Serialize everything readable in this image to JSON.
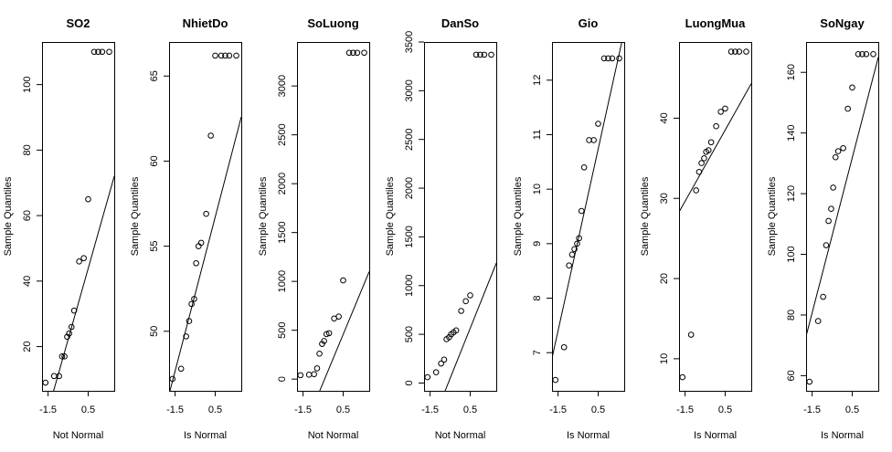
{
  "chart_data": [
    {
      "type": "scatter",
      "title": "SO2",
      "xlabel": "Not Normal",
      "ylabel": "Sample Quantiles",
      "x_ticks": [
        -1.5,
        0.5
      ],
      "x_tick_labels": [
        "-1.5",
        "0.5"
      ],
      "y_ticks": [
        20,
        40,
        60,
        80,
        100
      ],
      "xlim": [
        -1.8,
        1.8
      ],
      "ylim": [
        6.5,
        113
      ],
      "x": [
        -1.63,
        -1.2,
        -0.95,
        -0.8,
        -0.68,
        -0.55,
        -0.45,
        -0.33,
        -0.2,
        0.05,
        0.28,
        0.5,
        0.8,
        1.0,
        1.2,
        1.55
      ],
      "y": [
        9,
        11,
        11,
        17,
        17,
        23,
        24,
        26,
        31,
        46,
        47,
        65,
        110,
        110,
        110,
        110
      ],
      "reference_line": [
        [
          -1.8,
          -6
        ],
        [
          1.8,
          72
        ]
      ],
      "grid": false
    },
    {
      "type": "scatter",
      "title": "NhietDo",
      "xlabel": "Is Normal",
      "ylabel": "Sample Quantiles",
      "x_ticks": [
        -1.5,
        0.5
      ],
      "x_tick_labels": [
        "-1.5",
        "0.5"
      ],
      "y_ticks": [
        50,
        55,
        60,
        65
      ],
      "xlim": [
        -1.8,
        1.8
      ],
      "ylim": [
        46.5,
        67
      ],
      "x": [
        -1.63,
        -1.2,
        -0.95,
        -0.8,
        -0.68,
        -0.55,
        -0.45,
        -0.33,
        -0.2,
        0.05,
        0.28,
        0.5,
        0.8,
        1.0,
        1.2,
        1.55
      ],
      "y": [
        47.2,
        47.8,
        49.7,
        50.6,
        51.6,
        51.9,
        54.0,
        55.0,
        55.2,
        56.9,
        61.5,
        66.2,
        66.2,
        66.2,
        66.2,
        66.2
      ],
      "reference_line": [
        [
          -1.8,
          46.3
        ],
        [
          1.8,
          62.6
        ]
      ],
      "grid": false
    },
    {
      "type": "scatter",
      "title": "SoLuong",
      "xlabel": "Not Normal",
      "ylabel": "Sample Quantiles",
      "x_ticks": [
        -1.5,
        0.5
      ],
      "x_tick_labels": [
        "-1.5",
        "0.5"
      ],
      "y_ticks": [
        0,
        500,
        1000,
        1500,
        2000,
        2500,
        3000
      ],
      "xlim": [
        -1.8,
        1.8
      ],
      "ylim": [
        -120,
        3450
      ],
      "x": [
        -1.63,
        -1.2,
        -0.95,
        -0.8,
        -0.68,
        -0.55,
        -0.45,
        -0.33,
        -0.2,
        0.05,
        0.28,
        0.5,
        0.8,
        1.0,
        1.2,
        1.55
      ],
      "y": [
        40,
        45,
        50,
        110,
        260,
        360,
        390,
        460,
        470,
        620,
        640,
        1010,
        3340,
        3340,
        3340,
        3340
      ],
      "reference_line": [
        [
          -1.8,
          -680
        ],
        [
          1.8,
          1100
        ]
      ],
      "grid": false
    },
    {
      "type": "scatter",
      "title": "DanSo",
      "xlabel": "Not Normal",
      "ylabel": "Sample Quantiles",
      "x_ticks": [
        -1.5,
        0.5
      ],
      "x_tick_labels": [
        "-1.5",
        "0.5"
      ],
      "y_ticks": [
        0,
        500,
        1000,
        1500,
        2000,
        2500,
        3000,
        3500
      ],
      "xlim": [
        -1.8,
        1.8
      ],
      "ylim": [
        -80,
        3500
      ],
      "x": [
        -1.63,
        -1.2,
        -0.95,
        -0.8,
        -0.68,
        -0.55,
        -0.45,
        -0.33,
        -0.2,
        0.05,
        0.28,
        0.5,
        0.8,
        1.0,
        1.2,
        1.55
      ],
      "y": [
        60,
        110,
        200,
        240,
        450,
        470,
        500,
        520,
        540,
        740,
        840,
        900,
        3370,
        3370,
        3370,
        3370
      ],
      "reference_line": [
        [
          -1.8,
          -620
        ],
        [
          1.8,
          1230
        ]
      ],
      "grid": false
    },
    {
      "type": "scatter",
      "title": "Gio",
      "xlabel": "Is Normal",
      "ylabel": "Sample Quantiles",
      "x_ticks": [
        -1.5,
        0.5
      ],
      "x_tick_labels": [
        "-1.5",
        "0.5"
      ],
      "y_ticks": [
        7,
        8,
        9,
        10,
        11,
        12
      ],
      "xlim": [
        -1.8,
        1.8
      ],
      "ylim": [
        6.3,
        12.7
      ],
      "x": [
        -1.63,
        -1.2,
        -0.95,
        -0.8,
        -0.68,
        -0.55,
        -0.45,
        -0.33,
        -0.2,
        0.05,
        0.28,
        0.5,
        0.8,
        1.0,
        1.2,
        1.55
      ],
      "y": [
        6.5,
        7.1,
        8.6,
        8.8,
        8.9,
        9.0,
        9.1,
        9.6,
        10.4,
        10.9,
        10.9,
        11.2,
        12.4,
        12.4,
        12.4,
        12.4
      ],
      "reference_line": [
        [
          -1.8,
          6.9
        ],
        [
          1.8,
          12.9
        ]
      ],
      "grid": false
    },
    {
      "type": "scatter",
      "title": "LuongMua",
      "xlabel": "Is Normal",
      "ylabel": "Sample Quantiles",
      "x_ticks": [
        -1.5,
        0.5
      ],
      "x_tick_labels": [
        "-1.5",
        "0.5"
      ],
      "y_ticks": [
        10,
        20,
        30,
        40
      ],
      "xlim": [
        -1.8,
        1.8
      ],
      "ylim": [
        6,
        49.5
      ],
      "x": [
        -1.63,
        -1.2,
        -0.95,
        -0.8,
        -0.68,
        -0.55,
        -0.45,
        -0.33,
        -0.2,
        0.05,
        0.28,
        0.5,
        0.8,
        1.0,
        1.2,
        1.55
      ],
      "y": [
        7.7,
        13.0,
        31.0,
        33.3,
        34.4,
        35.0,
        35.8,
        36.0,
        37.0,
        39.0,
        40.8,
        41.2,
        48.3,
        48.3,
        48.3,
        48.3
      ],
      "reference_line": [
        [
          -1.8,
          28.3
        ],
        [
          1.8,
          44.3
        ]
      ],
      "grid": false
    },
    {
      "type": "scatter",
      "title": "SoNgay",
      "xlabel": "Is Normal",
      "ylabel": "Sample Quantiles",
      "x_ticks": [
        -1.5,
        0.5
      ],
      "x_tick_labels": [
        "-1.5",
        "0.5"
      ],
      "y_ticks": [
        60,
        80,
        100,
        120,
        140,
        160
      ],
      "xlim": [
        -1.8,
        1.8
      ],
      "ylim": [
        55,
        170
      ],
      "x": [
        -1.63,
        -1.2,
        -0.95,
        -0.8,
        -0.68,
        -0.55,
        -0.45,
        -0.33,
        -0.2,
        0.05,
        0.28,
        0.5,
        0.8,
        1.0,
        1.2,
        1.55
      ],
      "y": [
        58,
        78,
        86,
        103,
        111,
        115,
        122,
        132,
        134,
        135,
        148,
        155,
        166,
        166,
        166,
        166
      ],
      "reference_line": [
        [
          -1.8,
          73
        ],
        [
          1.8,
          165
        ]
      ],
      "grid": false
    }
  ]
}
